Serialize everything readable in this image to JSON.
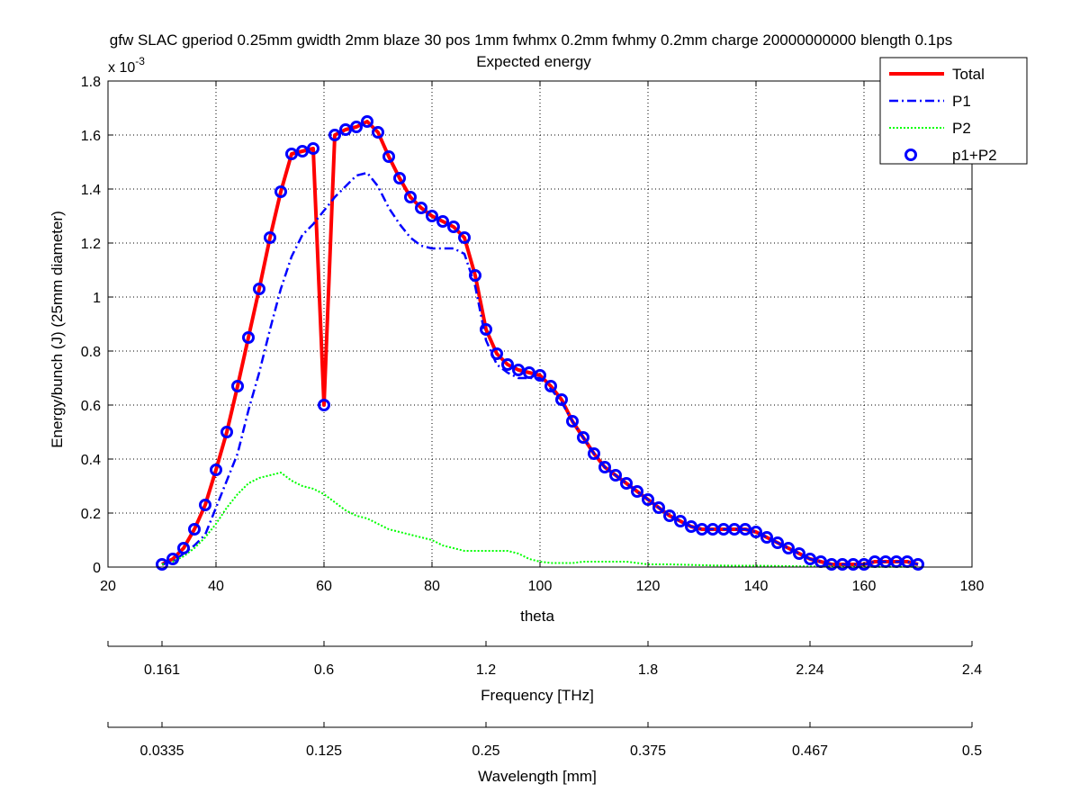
{
  "chart_data": {
    "type": "line",
    "title": "gfw SLAC gperiod 0.25mm gwidth 2mm blaze 30 pos 1mm fwhmx 0.2mm fwhmy 0.2mm charge 20000000000 blength 0.1ps",
    "subtitle": "Expected energy",
    "xlabel": "theta",
    "ylabel": "Energy/bunch (J)  (25mm diameter)",
    "y_exponent_label": "x 10",
    "y_exponent_value": "-3",
    "xlim": [
      20,
      180
    ],
    "ylim": [
      0,
      0.0018
    ],
    "y_scale_factor": 0.001,
    "xticks": [
      20,
      40,
      60,
      80,
      100,
      120,
      140,
      160,
      180
    ],
    "yticks": [
      0,
      0.0002,
      0.0004,
      0.0006,
      0.0008,
      0.001,
      0.0012,
      0.0014,
      0.0016,
      0.0018
    ],
    "xtick_labels": [
      "20",
      "40",
      "60",
      "80",
      "100",
      "120",
      "140",
      "160",
      "180"
    ],
    "ytick_labels": [
      "0",
      "0.2",
      "0.4",
      "0.6",
      "0.8",
      "1",
      "1.2",
      "1.4",
      "1.6",
      "1.8"
    ],
    "grid": true,
    "legend_position": "top-right",
    "series": [
      {
        "name": "Total",
        "style": "solid",
        "color": "#ff0000",
        "x": [
          30,
          32,
          34,
          36,
          38,
          40,
          42,
          44,
          46,
          48,
          50,
          52,
          54,
          56,
          58,
          60,
          62,
          64,
          66,
          68,
          70,
          72,
          74,
          76,
          78,
          80,
          82,
          84,
          86,
          88,
          90,
          92,
          94,
          96,
          98,
          100,
          102,
          104,
          106,
          108,
          110,
          112,
          114,
          116,
          118,
          120,
          122,
          124,
          126,
          128,
          130,
          132,
          134,
          136,
          138,
          140,
          142,
          144,
          146,
          148,
          150,
          152,
          154,
          156,
          158,
          160,
          162,
          164,
          166,
          168,
          170
        ],
        "y": [
          1e-05,
          3e-05,
          7e-05,
          0.00014,
          0.00023,
          0.00036,
          0.0005,
          0.00067,
          0.00085,
          0.00103,
          0.00122,
          0.00139,
          0.00153,
          0.00154,
          0.00155,
          0.0006,
          0.0016,
          0.00162,
          0.00163,
          0.00165,
          0.00161,
          0.00152,
          0.00144,
          0.00137,
          0.00133,
          0.0013,
          0.00128,
          0.00126,
          0.00122,
          0.00108,
          0.00088,
          0.00079,
          0.00075,
          0.00073,
          0.00072,
          0.00071,
          0.00067,
          0.00062,
          0.00054,
          0.00048,
          0.00042,
          0.00037,
          0.00034,
          0.00031,
          0.00028,
          0.00025,
          0.00022,
          0.00019,
          0.00017,
          0.00015,
          0.00014,
          0.00014,
          0.00014,
          0.00014,
          0.00014,
          0.00013,
          0.00011,
          9e-05,
          7e-05,
          5e-05,
          3e-05,
          2e-05,
          1e-05,
          1e-05,
          1e-05,
          1e-05,
          2e-05,
          2e-05,
          2e-05,
          2e-05,
          1e-05
        ]
      },
      {
        "name": "P1",
        "style": "dash-dot",
        "color": "#0000ff",
        "x": [
          30,
          32,
          34,
          36,
          38,
          40,
          42,
          44,
          46,
          48,
          50,
          52,
          54,
          56,
          58,
          60,
          62,
          64,
          66,
          68,
          70,
          72,
          74,
          76,
          78,
          80,
          82,
          84,
          86,
          88,
          90,
          92,
          94,
          96,
          98,
          100,
          102,
          104,
          106,
          108,
          110,
          112,
          114,
          116,
          118,
          120,
          122,
          124,
          126,
          128,
          130,
          132,
          134,
          136,
          138,
          140,
          142,
          144,
          146,
          148,
          150,
          152,
          154,
          156,
          158,
          160,
          162,
          164,
          166,
          168,
          170
        ],
        "y": [
          1e-05,
          2e-05,
          5e-05,
          8e-05,
          0.00012,
          0.00022,
          0.00032,
          0.00042,
          0.00058,
          0.00072,
          0.00088,
          0.00103,
          0.00115,
          0.00123,
          0.00127,
          0.00132,
          0.00137,
          0.00141,
          0.00145,
          0.00146,
          0.00141,
          0.00133,
          0.00127,
          0.00122,
          0.00119,
          0.00118,
          0.00118,
          0.00118,
          0.00116,
          0.00104,
          0.00084,
          0.00075,
          0.00072,
          0.0007,
          0.0007,
          0.0007,
          0.00066,
          0.00061,
          0.00054,
          0.00048,
          0.00042,
          0.00037,
          0.00034,
          0.00031,
          0.00028,
          0.00025,
          0.00022,
          0.00019,
          0.00017,
          0.00015,
          0.00014,
          0.00014,
          0.00014,
          0.00014,
          0.00014,
          0.00013,
          0.00011,
          9e-05,
          7e-05,
          5e-05,
          3e-05,
          2e-05,
          1e-05,
          1e-05,
          1e-05,
          1e-05,
          2e-05,
          2e-05,
          2e-05,
          2e-05,
          1e-05
        ]
      },
      {
        "name": "P2",
        "style": "dotted",
        "color": "#00ff00",
        "x": [
          30,
          32,
          34,
          36,
          38,
          40,
          42,
          44,
          46,
          48,
          50,
          52,
          54,
          56,
          58,
          60,
          62,
          64,
          66,
          68,
          70,
          72,
          74,
          76,
          78,
          80,
          82,
          84,
          86,
          88,
          90,
          92,
          94,
          96,
          98,
          100,
          102,
          104,
          106,
          108,
          110,
          112,
          114,
          116,
          118,
          120,
          124,
          128,
          132,
          136,
          140,
          144,
          148,
          152,
          156,
          160,
          164,
          168,
          170
        ],
        "y": [
          1e-05,
          2e-05,
          4e-05,
          7e-05,
          0.00011,
          0.00016,
          0.00022,
          0.00027,
          0.00031,
          0.00033,
          0.00034,
          0.00035,
          0.00032,
          0.0003,
          0.00029,
          0.00027,
          0.00024,
          0.00021,
          0.00019,
          0.00018,
          0.00016,
          0.00014,
          0.00013,
          0.00012,
          0.00011,
          0.0001,
          8e-05,
          7e-05,
          6e-05,
          6e-05,
          6e-05,
          6e-05,
          6e-05,
          5e-05,
          3e-05,
          2e-05,
          1.5e-05,
          1.5e-05,
          1.5e-05,
          2e-05,
          2e-05,
          2e-05,
          2e-05,
          2e-05,
          1.5e-05,
          1e-05,
          1e-05,
          8e-06,
          6e-06,
          5e-06,
          5e-06,
          4e-06,
          3e-06,
          2e-06,
          1e-06,
          1e-06,
          1e-06,
          1e-06,
          1e-06
        ]
      },
      {
        "name": "p1+P2",
        "style": "circles",
        "color": "#0000ff",
        "x": [
          30,
          32,
          34,
          36,
          38,
          40,
          42,
          44,
          46,
          48,
          50,
          52,
          54,
          56,
          58,
          60,
          62,
          64,
          66,
          68,
          70,
          72,
          74,
          76,
          78,
          80,
          82,
          84,
          86,
          88,
          90,
          92,
          94,
          96,
          98,
          100,
          102,
          104,
          106,
          108,
          110,
          112,
          114,
          116,
          118,
          120,
          122,
          124,
          126,
          128,
          130,
          132,
          134,
          136,
          138,
          140,
          142,
          144,
          146,
          148,
          150,
          152,
          154,
          156,
          158,
          160,
          162,
          164,
          166,
          168,
          170
        ],
        "y": [
          1e-05,
          3e-05,
          7e-05,
          0.00014,
          0.00023,
          0.00036,
          0.0005,
          0.00067,
          0.00085,
          0.00103,
          0.00122,
          0.00139,
          0.00153,
          0.00154,
          0.00155,
          0.0006,
          0.0016,
          0.00162,
          0.00163,
          0.00165,
          0.00161,
          0.00152,
          0.00144,
          0.00137,
          0.00133,
          0.0013,
          0.00128,
          0.00126,
          0.00122,
          0.00108,
          0.00088,
          0.00079,
          0.00075,
          0.00073,
          0.00072,
          0.00071,
          0.00067,
          0.00062,
          0.00054,
          0.00048,
          0.00042,
          0.00037,
          0.00034,
          0.00031,
          0.00028,
          0.00025,
          0.00022,
          0.00019,
          0.00017,
          0.00015,
          0.00014,
          0.00014,
          0.00014,
          0.00014,
          0.00014,
          0.00013,
          0.00011,
          9e-05,
          7e-05,
          5e-05,
          3e-05,
          2e-05,
          1e-05,
          1e-05,
          1e-05,
          1e-05,
          2e-05,
          2e-05,
          2e-05,
          2e-05,
          1e-05
        ]
      }
    ],
    "secondary_axes": [
      {
        "label": "Frequency [THz]",
        "tick_positions_theta": [
          30,
          60,
          90,
          120,
          150,
          180
        ],
        "tick_labels": [
          "0.161",
          "0.6",
          "1.2",
          "1.8",
          "2.24",
          "2.4"
        ]
      },
      {
        "label": "Wavelength [mm]",
        "tick_positions_theta": [
          30,
          60,
          90,
          120,
          150,
          180
        ],
        "tick_labels": [
          "0.0335",
          "0.125",
          "0.25",
          "0.375",
          "0.467",
          "0.5"
        ]
      }
    ]
  }
}
